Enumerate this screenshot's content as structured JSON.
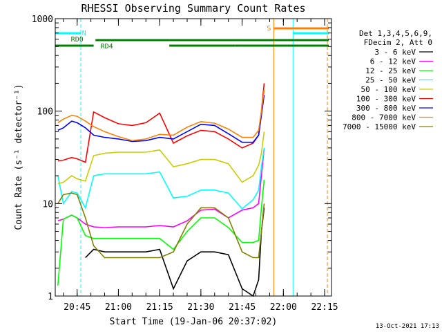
{
  "chart_data": {
    "type": "line",
    "title": "RHESSI Observing Summary Count Rates",
    "xlabel": "Start Time (19-Jan-06 20:37:02)",
    "ylabel": "Count Rate (s⁻¹ detector⁻¹)",
    "yscale": "log",
    "ylim": [
      1,
      1000
    ],
    "xlim": [
      "20:37:02",
      "22:17:30"
    ],
    "x_ticks": [
      "20:45",
      "21:00",
      "21:15",
      "21:30",
      "21:45",
      "22:00",
      "22:15"
    ],
    "y_ticks": [
      "1",
      "10",
      "100",
      "1000"
    ],
    "grid": false,
    "legend_position": "right",
    "legend_header": [
      "Det 1,3,4,5,6,9,",
      "FDecim 2, Att 0"
    ],
    "footer_timestamp": "13-Oct-2021 17:13",
    "x": [
      "20:38",
      "20:40",
      "20:43",
      "20:45",
      "20:48",
      "20:51",
      "20:55",
      "21:00",
      "21:05",
      "21:10",
      "21:15",
      "21:20",
      "21:25",
      "21:30",
      "21:35",
      "21:40",
      "21:45",
      "21:49",
      "21:51",
      "21:52",
      "21:53"
    ],
    "series": [
      {
        "name": "3 - 6 keV",
        "color": "#000000",
        "values": [
          null,
          null,
          null,
          null,
          2.6,
          3.2,
          3.0,
          3.0,
          3.0,
          3.0,
          3.2,
          1.2,
          2.4,
          3.0,
          3.0,
          2.8,
          1.2,
          1.0,
          1.5,
          5.0,
          9.0
        ]
      },
      {
        "name": "6 - 12 keV",
        "color": "#ff00ff",
        "values": [
          6.5,
          6.8,
          7.5,
          7.0,
          6.0,
          5.6,
          5.5,
          5.6,
          5.6,
          5.6,
          5.8,
          5.6,
          6.5,
          8.5,
          8.7,
          7.0,
          8.5,
          9.0,
          10.0,
          20.0,
          40.0
        ]
      },
      {
        "name": "12 - 25 keV",
        "color": "#00ff00",
        "values": [
          1.3,
          6.8,
          7.5,
          7.0,
          4.5,
          4.2,
          4.2,
          4.2,
          4.2,
          4.2,
          4.2,
          3.2,
          5.0,
          7.0,
          7.0,
          5.5,
          3.8,
          3.8,
          4.0,
          9.0,
          18.0
        ]
      },
      {
        "name": "25 - 50 keV",
        "color": "#00ffff",
        "values": [
          20.0,
          10.0,
          13.5,
          13.0,
          9.0,
          20.0,
          21.0,
          21.0,
          21.0,
          21.0,
          22.0,
          11.5,
          12.0,
          14.0,
          14.0,
          13.0,
          8.8,
          11.0,
          14.0,
          25.0,
          40.0
        ]
      },
      {
        "name": "50 - 100 keV",
        "color": "#cccc00",
        "values": [
          16.5,
          17.0,
          20.0,
          18.5,
          17.5,
          33.0,
          35.0,
          36.0,
          36.0,
          36.0,
          38.0,
          25.0,
          27.0,
          30.0,
          30.0,
          27.0,
          17.0,
          20.0,
          26.0,
          35.0,
          60.0
        ]
      },
      {
        "name": "100 - 300 keV",
        "color": "#ff0000",
        "values": [
          29.0,
          29.5,
          31.5,
          30.5,
          28.0,
          98.0,
          85.0,
          73.0,
          70.0,
          75.0,
          95.0,
          45.0,
          54.0,
          62.0,
          60.0,
          50.0,
          40.0,
          45.0,
          55.0,
          100.0,
          200.0
        ]
      },
      {
        "name": "300 - 800 keV",
        "color": "#0000ff",
        "values": [
          62.0,
          66.0,
          78.0,
          75.0,
          66.0,
          55.0,
          52.0,
          50.0,
          47.0,
          48.0,
          52.0,
          50.0,
          60.0,
          72.0,
          70.0,
          57.0,
          46.0,
          46.0,
          55.0,
          90.0,
          150.0
        ]
      },
      {
        "name": "800 - 7000 keV",
        "color": "#ff8000",
        "values": [
          75.0,
          82.0,
          90.0,
          88.0,
          78.0,
          68.0,
          60.0,
          53.0,
          48.0,
          50.0,
          56.0,
          55.0,
          67.0,
          77.0,
          74.0,
          64.0,
          52.0,
          52.0,
          62.0,
          100.0,
          170.0
        ]
      },
      {
        "name": "7000 - 15000 keV",
        "color": "#808000",
        "values": [
          10.0,
          12.5,
          13.0,
          12.5,
          7.0,
          3.5,
          2.6,
          2.6,
          2.6,
          2.6,
          2.6,
          3.0,
          6.0,
          9.0,
          9.0,
          7.0,
          3.0,
          2.6,
          2.6,
          5.0,
          10.0
        ]
      }
    ],
    "state_bars": [
      {
        "label": "N",
        "color": "#00ffff",
        "segments": [
          [
            "20:37:02",
            "20:46:20"
          ],
          [
            "22:03:30",
            "22:16:30"
          ]
        ]
      },
      {
        "label": "S",
        "color": "#ff8000",
        "segments": [
          [
            "21:56:30",
            "22:16:30"
          ]
        ]
      },
      {
        "label": "RD0",
        "color": "#008000",
        "segments": [
          [
            "20:51:40",
            "21:18:30"
          ],
          [
            "21:18:30",
            "22:16:30"
          ]
        ]
      },
      {
        "label": "RD4",
        "color": "#008000",
        "segments": [
          [
            "20:37:02",
            "20:51:00"
          ],
          [
            "21:18:30",
            "21:42:30"
          ],
          [
            "21:42:30",
            "22:16:30"
          ]
        ]
      }
    ],
    "vertical_markers": [
      {
        "time": "20:46:20",
        "color": "#00ffff",
        "style": "dashed"
      },
      {
        "time": "22:03:30",
        "color": "#00ffff",
        "style": "solid"
      },
      {
        "time": "21:56:30",
        "color": "#ff8000",
        "style": "solid"
      },
      {
        "time": "22:16:00",
        "color": "#ff8000",
        "style": "dashed"
      }
    ]
  }
}
